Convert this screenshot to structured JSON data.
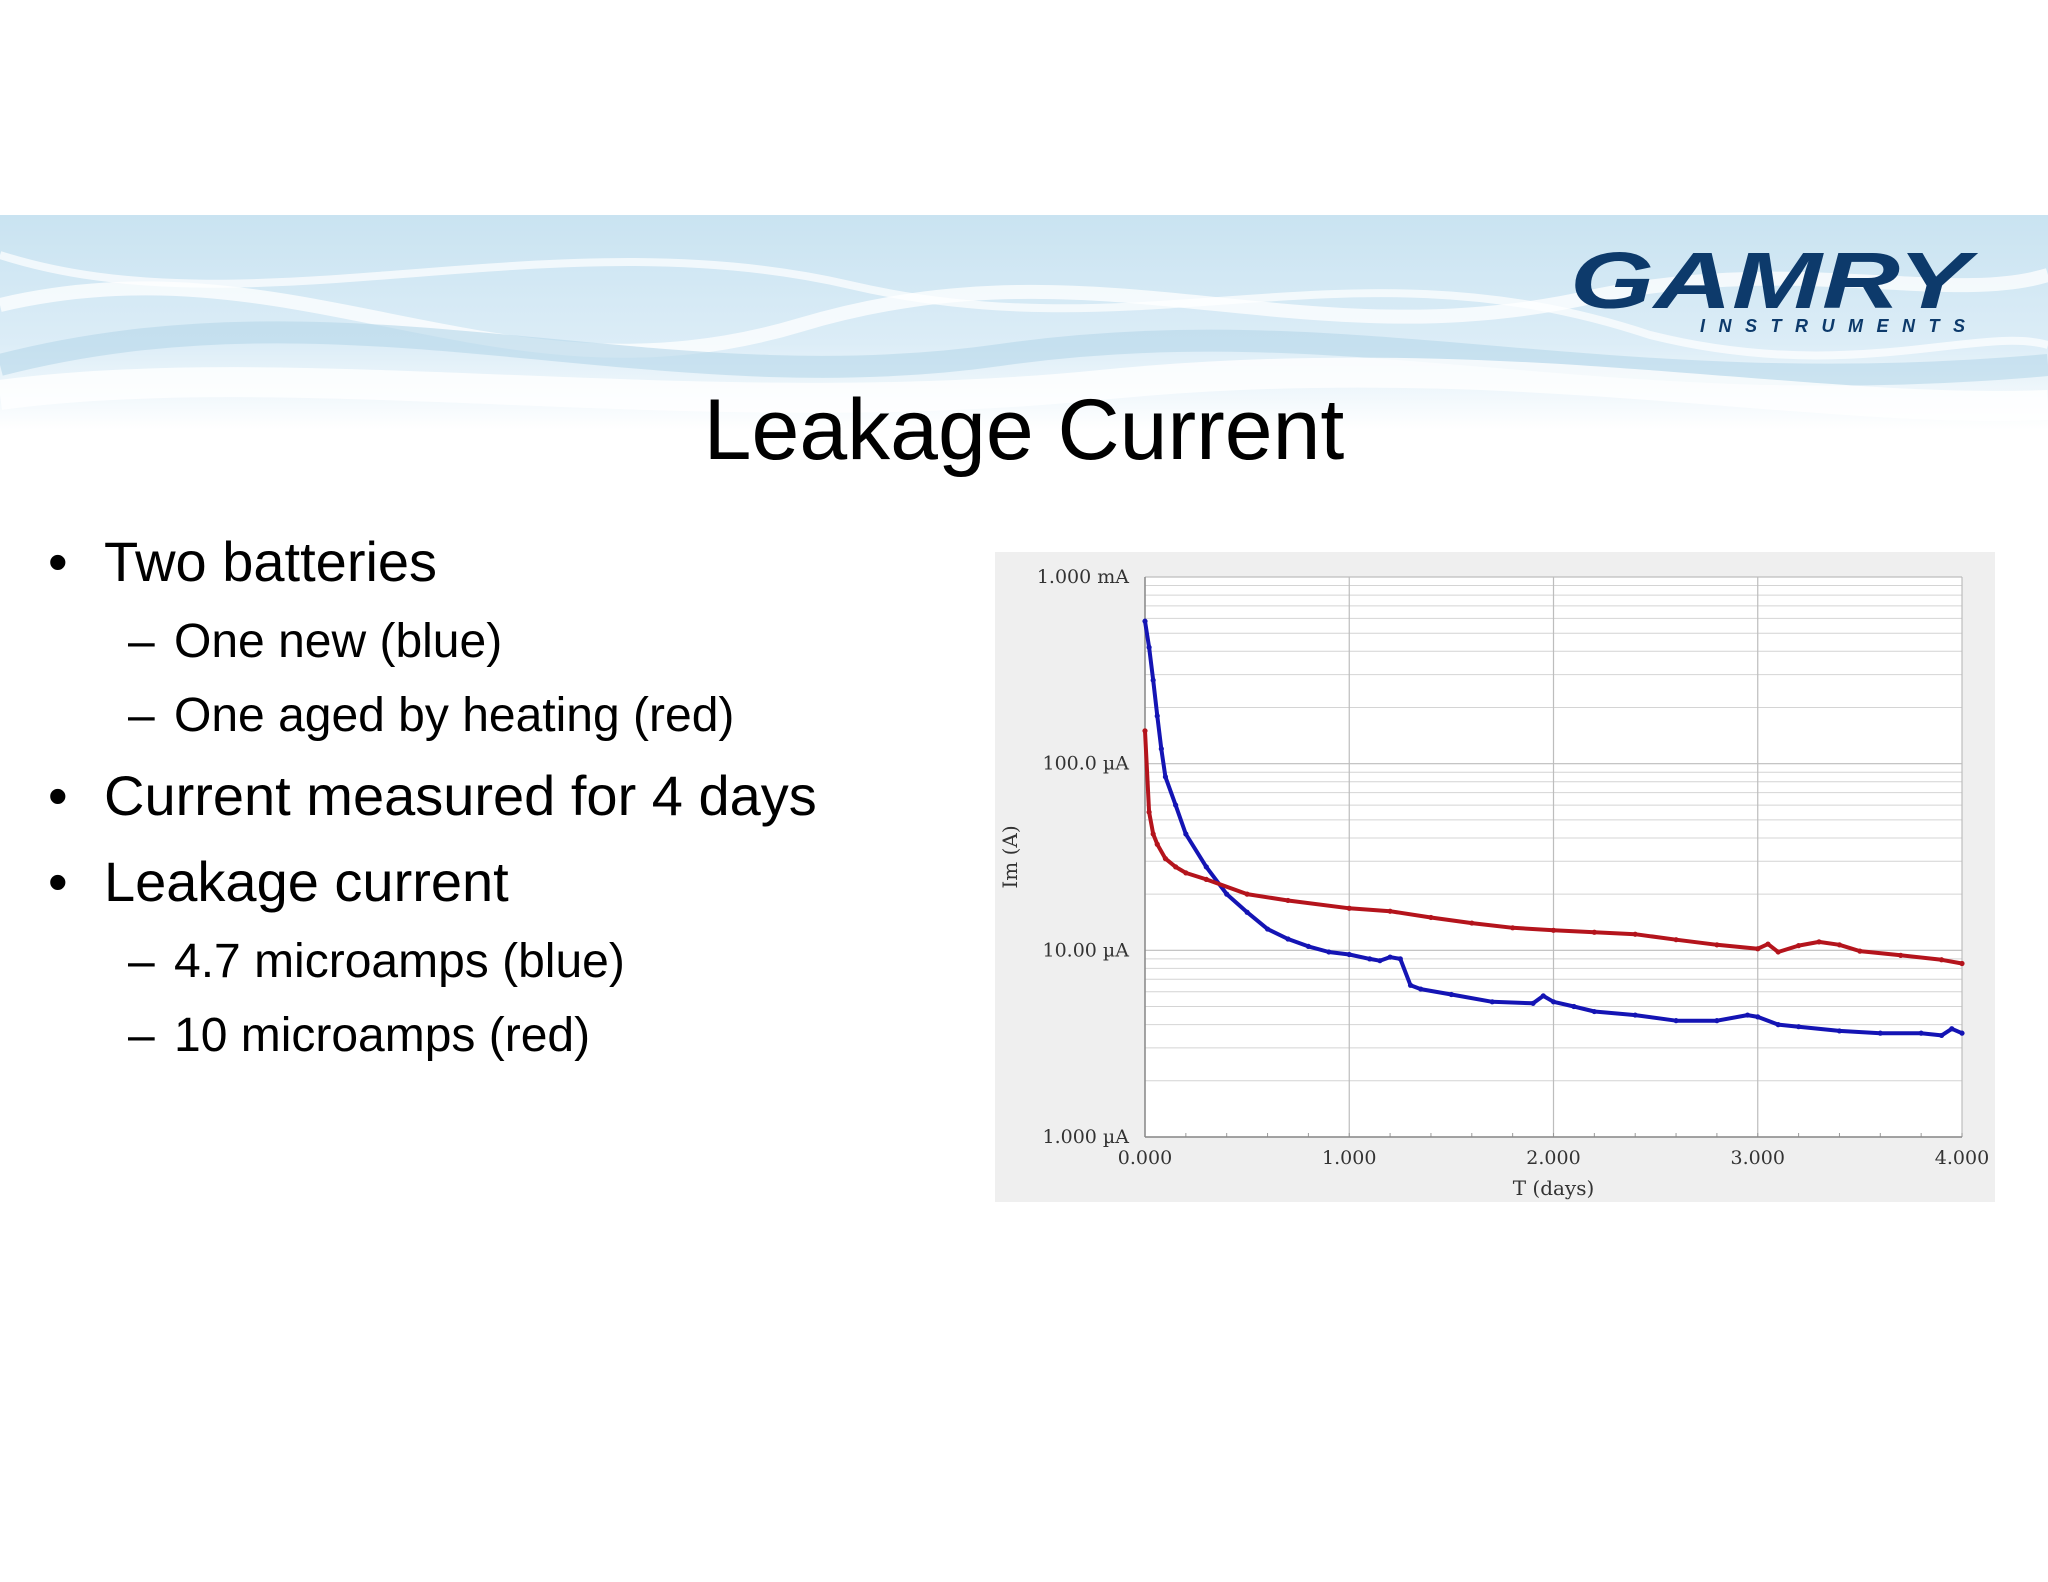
{
  "slide": {
    "title": "Leakage Current",
    "logo": {
      "name": "GAMRY",
      "tagline": "INSTRUMENTS",
      "color": "#0d3a6b"
    },
    "colors": {
      "banner": "#cfe6f2",
      "banner_light": "#eaf5fb"
    }
  },
  "bullets": [
    {
      "level": 1,
      "mark": "•",
      "text": "Two batteries"
    },
    {
      "level": 2,
      "mark": "–",
      "text": "One new (blue)"
    },
    {
      "level": 2,
      "mark": "–",
      "text": "One aged by heating (red)"
    },
    {
      "level": 1,
      "mark": "•",
      "text": "Current measured for 4 days"
    },
    {
      "level": 1,
      "mark": "•",
      "text": "Leakage current"
    },
    {
      "level": 2,
      "mark": "–",
      "text": "4.7 microamps (blue)"
    },
    {
      "level": 2,
      "mark": "–",
      "text": "10 microamps (red)"
    }
  ],
  "chart_data": {
    "type": "line",
    "xlabel": "T (days)",
    "ylabel": "Im (A)",
    "xlim": [
      0,
      4
    ],
    "ylim": [
      1e-06,
      0.001
    ],
    "y_scale": "log",
    "grid": true,
    "x_ticks": [
      {
        "value": 0,
        "label": "0.000"
      },
      {
        "value": 1,
        "label": "1.000"
      },
      {
        "value": 2,
        "label": "2.000"
      },
      {
        "value": 3,
        "label": "3.000"
      },
      {
        "value": 4,
        "label": "4.000"
      }
    ],
    "y_ticks": [
      {
        "value": 0.001,
        "label": "1.000 mA"
      },
      {
        "value": 0.0001,
        "label": "100.0 µA"
      },
      {
        "value": 1e-05,
        "label": "10.00 µA"
      },
      {
        "value": 1e-06,
        "label": "1.000 µA"
      }
    ],
    "series": [
      {
        "color": "#1414b4",
        "x": [
          0.0,
          0.02,
          0.04,
          0.06,
          0.08,
          0.1,
          0.15,
          0.2,
          0.3,
          0.4,
          0.5,
          0.6,
          0.7,
          0.8,
          0.9,
          1.0,
          1.1,
          1.15,
          1.2,
          1.25,
          1.3,
          1.35,
          1.5,
          1.7,
          1.9,
          1.95,
          2.0,
          2.1,
          2.2,
          2.4,
          2.6,
          2.8,
          2.95,
          3.0,
          3.1,
          3.2,
          3.4,
          3.6,
          3.8,
          3.9,
          3.95,
          4.0
        ],
        "y": [
          0.00058,
          0.00042,
          0.00028,
          0.00018,
          0.00012,
          8.5e-05,
          6e-05,
          4.2e-05,
          2.8e-05,
          2e-05,
          1.6e-05,
          1.3e-05,
          1.15e-05,
          1.05e-05,
          9.8e-06,
          9.5e-06,
          9e-06,
          8.8e-06,
          9.2e-06,
          9e-06,
          6.5e-06,
          6.2e-06,
          5.8e-06,
          5.3e-06,
          5.2e-06,
          5.7e-06,
          5.3e-06,
          5e-06,
          4.7e-06,
          4.5e-06,
          4.2e-06,
          4.2e-06,
          4.5e-06,
          4.4e-06,
          4e-06,
          3.9e-06,
          3.7e-06,
          3.6e-06,
          3.6e-06,
          3.5e-06,
          3.8e-06,
          3.6e-06
        ]
      },
      {
        "color": "#b4141c",
        "x": [
          0.0,
          0.02,
          0.04,
          0.06,
          0.1,
          0.15,
          0.2,
          0.3,
          0.5,
          0.7,
          1.0,
          1.2,
          1.4,
          1.6,
          1.8,
          2.0,
          2.2,
          2.4,
          2.6,
          2.8,
          3.0,
          3.05,
          3.1,
          3.2,
          3.3,
          3.4,
          3.5,
          3.7,
          3.9,
          4.0
        ],
        "y": [
          0.00015,
          5.5e-05,
          4.2e-05,
          3.7e-05,
          3.1e-05,
          2.8e-05,
          2.6e-05,
          2.4e-05,
          2e-05,
          1.85e-05,
          1.68e-05,
          1.62e-05,
          1.5e-05,
          1.4e-05,
          1.32e-05,
          1.28e-05,
          1.25e-05,
          1.22e-05,
          1.14e-05,
          1.07e-05,
          1.02e-05,
          1.08e-05,
          9.8e-06,
          1.06e-05,
          1.11e-05,
          1.07e-05,
          9.9e-06,
          9.4e-06,
          8.9e-06,
          8.5e-06
        ]
      }
    ]
  }
}
